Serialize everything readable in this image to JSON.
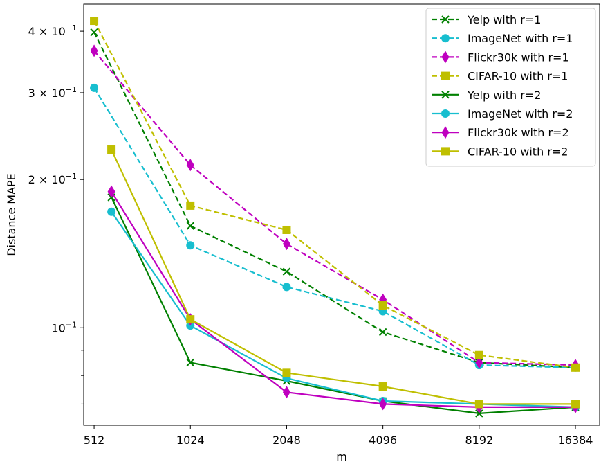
{
  "chart_data": {
    "type": "line",
    "xlabel": "m",
    "ylabel": "Distance MAPE",
    "x_scale": "log2",
    "y_scale": "log",
    "x_ticks": [
      512,
      1024,
      2048,
      4096,
      8192,
      16384
    ],
    "x_tick_labels": [
      "512",
      "1024",
      "2048",
      "4096",
      "8192",
      "16384"
    ],
    "xlim": [
      475,
      19500
    ],
    "ylim": [
      0.0634,
      0.454
    ],
    "y_major_ticks": [
      {
        "value": 0.1,
        "label": "10⁻¹",
        "mantissa": "",
        "exponent": "−1"
      },
      {
        "value": 0.2,
        "label": "2 × 10⁻¹",
        "mantissa": "2",
        "exponent": "−1"
      },
      {
        "value": 0.3,
        "label": "3 × 10⁻¹",
        "mantissa": "3",
        "exponent": "−1"
      },
      {
        "value": 0.4,
        "label": "4 × 10⁻¹",
        "mantissa": "4",
        "exponent": "−1"
      }
    ],
    "y_minor_ticks": [
      0.07,
      0.08,
      0.09
    ],
    "grid": false,
    "legend_position": "top-right",
    "series": [
      {
        "name": "Yelp with r=1",
        "color": "#008000",
        "marker": "x",
        "linestyle": "dashed",
        "x": [
          512,
          1024,
          2048,
          4096,
          8192,
          16384
        ],
        "y": [
          0.398,
          0.161,
          0.13,
          0.098,
          0.085,
          0.083
        ]
      },
      {
        "value_note": "",
        "name": "ImageNet with r=1",
        "color": "#17becf",
        "marker": "circle",
        "linestyle": "dashed",
        "x": [
          512,
          1024,
          2048,
          4096,
          8192,
          16384
        ],
        "y": [
          0.307,
          0.147,
          0.121,
          0.108,
          0.084,
          0.083
        ]
      },
      {
        "name": "Flickr30k with r=1",
        "color": "#bf00bf",
        "marker": "diamond",
        "linestyle": "dashed",
        "x": [
          512,
          1024,
          2048,
          4096,
          8192,
          16384
        ],
        "y": [
          0.365,
          0.214,
          0.148,
          0.114,
          0.085,
          0.084
        ]
      },
      {
        "name": "CIFAR-10 with r=1",
        "color": "#bfbf00",
        "marker": "square",
        "linestyle": "dashed",
        "x": [
          512,
          1024,
          2048,
          4096,
          8192,
          16384
        ],
        "y": [
          0.42,
          0.177,
          0.158,
          0.111,
          0.088,
          0.083
        ]
      },
      {
        "name": "Yelp with r=2",
        "color": "#008000",
        "marker": "x",
        "linestyle": "solid",
        "x": [
          580,
          1024,
          2048,
          4096,
          8192,
          16384
        ],
        "y": [
          0.184,
          0.085,
          0.078,
          0.071,
          0.067,
          0.069
        ]
      },
      {
        "name": "ImageNet with r=2",
        "color": "#17becf",
        "marker": "circle",
        "linestyle": "solid",
        "x": [
          580,
          1024,
          2048,
          4096,
          8192,
          16384
        ],
        "y": [
          0.172,
          0.101,
          0.079,
          0.071,
          0.07,
          0.069
        ]
      },
      {
        "name": "Flickr30k with r=2",
        "color": "#bf00bf",
        "marker": "diamond",
        "linestyle": "solid",
        "x": [
          580,
          1024,
          2048,
          4096,
          8192,
          16384
        ],
        "y": [
          0.189,
          0.104,
          0.074,
          0.07,
          0.069,
          0.069
        ]
      },
      {
        "name": "CIFAR-10 with r=2",
        "color": "#bfbf00",
        "marker": "square",
        "linestyle": "solid",
        "x": [
          580,
          1024,
          2048,
          4096,
          8192,
          16384
        ],
        "y": [
          0.23,
          0.104,
          0.081,
          0.076,
          0.07,
          0.07
        ]
      }
    ]
  }
}
